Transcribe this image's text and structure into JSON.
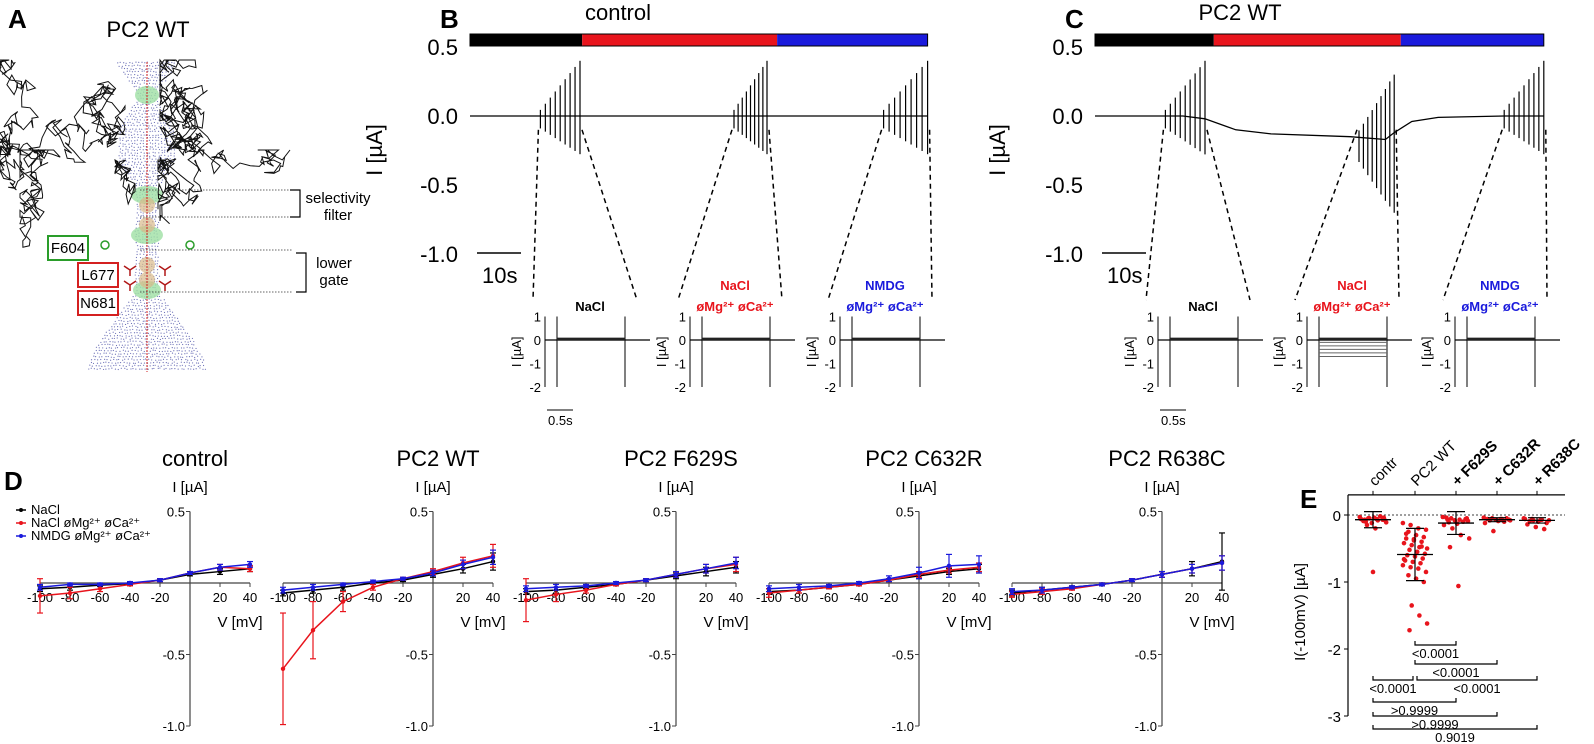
{
  "panel_labels": {
    "a": "A",
    "b": "B",
    "c": "C",
    "d": "D",
    "e": "E"
  },
  "panel_a": {
    "title": "PC2 WT",
    "residues": [
      {
        "label": "F604",
        "color": "#2a9d2a"
      },
      {
        "label": "L677",
        "color": "#d42020"
      },
      {
        "label": "N681",
        "color": "#d42020"
      }
    ],
    "regions": [
      {
        "line1": "selectivity",
        "line2": "filter"
      },
      {
        "line1": "lower",
        "line2": "gate"
      }
    ]
  },
  "colors": {
    "black": "#000000",
    "red": "#e8141c",
    "blue": "#1a1adc"
  },
  "chart_data": [
    {
      "id": "B",
      "type": "line",
      "title": "control",
      "ylabel": "I [µA]",
      "ylim": [
        -1.0,
        0.5
      ],
      "yticks": [
        "0.5",
        "0.0",
        "-0.5",
        "-1.0"
      ],
      "scalebar": "10s",
      "phases": [
        {
          "color": "#000000",
          "t": [
            0,
            25.5
          ]
        },
        {
          "color": "#e8141c",
          "t": [
            25.5,
            69.8
          ]
        },
        {
          "color": "#1a1adc",
          "t": [
            69.8,
            104
          ]
        }
      ],
      "baseline": [
        [
          0,
          0
        ],
        [
          104,
          0
        ]
      ],
      "pulse_windows": [
        {
          "t": [
            16,
            25
          ],
          "min": -0.3,
          "max": 0.4
        },
        {
          "t": [
            60,
            67.5
          ],
          "min": -0.3,
          "max": 0.4
        },
        {
          "t": [
            94,
            104
          ],
          "min": -0.3,
          "max": 0.4
        }
      ],
      "insets": [
        {
          "line1": "",
          "line2": "NaCl",
          "color": "#000000",
          "yticks": [
            "1",
            "0",
            "-1",
            "-2"
          ],
          "ylabel": "I [µA]",
          "scalebar": "0.5s",
          "steps": []
        },
        {
          "line1": "NaCl",
          "line2": "øMg²⁺ øCa²⁺",
          "color": "#e8141c",
          "yticks": [
            "1",
            "0",
            "-1",
            "-2"
          ],
          "ylabel": "I [µA]",
          "steps": []
        },
        {
          "line1": "NMDG",
          "line2": "øMg²⁺ øCa²⁺",
          "color": "#1a1adc",
          "yticks": [
            "1",
            "0",
            "-1",
            "-2"
          ],
          "ylabel": "I [µA]",
          "steps": []
        }
      ]
    },
    {
      "id": "C",
      "type": "line",
      "title": "PC2 WT",
      "ylabel": "I [µA]",
      "ylim": [
        -1.0,
        0.5
      ],
      "yticks": [
        "0.5",
        "0.0",
        "-0.5",
        "-1.0"
      ],
      "scalebar": "10s",
      "phases": [
        {
          "color": "#000000",
          "t": [
            0,
            27
          ]
        },
        {
          "color": "#e8141c",
          "t": [
            27,
            69.5
          ]
        },
        {
          "color": "#1a1adc",
          "t": [
            69.5,
            102
          ]
        }
      ],
      "baseline": [
        [
          0,
          0
        ],
        [
          20,
          0
        ],
        [
          25,
          -0.02
        ],
        [
          32,
          -0.1
        ],
        [
          40,
          -0.13
        ],
        [
          58,
          -0.15
        ],
        [
          66,
          -0.17
        ],
        [
          68,
          -0.12
        ],
        [
          72,
          -0.04
        ],
        [
          78,
          -0.01
        ],
        [
          93,
          0
        ],
        [
          102,
          0
        ]
      ],
      "pulse_windows": [
        {
          "t": [
            16,
            25
          ],
          "min": -0.3,
          "max": 0.4
        },
        {
          "t": [
            60,
            68
          ],
          "min": -0.75,
          "max": 0.3
        },
        {
          "t": [
            93,
            102
          ],
          "min": -0.3,
          "max": 0.4
        }
      ],
      "insets": [
        {
          "line1": "",
          "line2": "NaCl",
          "color": "#000000",
          "yticks": [
            "1",
            "0",
            "-1",
            "-2"
          ],
          "ylabel": "I [µA]",
          "scalebar": "0.5s",
          "steps": []
        },
        {
          "line1": "NaCl",
          "line2": "øMg²⁺ øCa²⁺",
          "color": "#e8141c",
          "yticks": [
            "1",
            "0",
            "-1",
            "-2"
          ],
          "ylabel": "I [µA]",
          "steps": [
            -0.1,
            -0.25,
            -0.4,
            -0.55,
            -0.7
          ]
        },
        {
          "line1": "NMDG",
          "line2": "øMg²⁺ øCa²⁺",
          "color": "#1a1adc",
          "yticks": [
            "1",
            "0",
            "-1",
            "-2"
          ],
          "ylabel": "I [µA]",
          "steps": []
        }
      ]
    },
    {
      "id": "D",
      "type": "line",
      "xlabel": "V [mV]",
      "ylabel": "I [µA]",
      "x": [
        -100,
        -80,
        -60,
        -40,
        -20,
        0,
        20,
        40
      ],
      "xticks": [
        "-100",
        "-80",
        "-60",
        "-40",
        "-20",
        "20",
        "40"
      ],
      "yticks": [
        "0.5",
        "-0.5",
        "-1.0"
      ],
      "ylim": [
        -1.0,
        0.5
      ],
      "legend": [
        {
          "name": "NaCl",
          "color": "#000000"
        },
        {
          "name": "NaCl øMg²⁺ øCa²⁺",
          "color": "#e8141c"
        },
        {
          "name": "NMDG øMg²⁺ øCa²⁺",
          "color": "#1a1adc"
        }
      ],
      "legend_position": "top-left",
      "subplots": [
        {
          "title": "control",
          "series": [
            {
              "name": "NaCl",
              "values": [
                -0.04,
                -0.03,
                -0.015,
                -0.005,
                0.02,
                0.06,
                0.08,
                0.1
              ],
              "err": [
                0.02,
                0.02,
                0.01,
                0.01,
                0.01,
                0.01,
                0.02,
                0.02
              ]
            },
            {
              "name": "NaCl øMg²⁺ øCa²⁺",
              "values": [
                -0.09,
                -0.07,
                -0.04,
                -0.01,
                0.02,
                0.07,
                0.11,
                0.1
              ],
              "err": [
                0.12,
                0.04,
                0.02,
                0.01,
                0.01,
                0.01,
                0.02,
                0.02
              ]
            },
            {
              "name": "NMDG øMg²⁺ øCa²⁺",
              "values": [
                -0.03,
                -0.01,
                -0.01,
                0.0,
                0.02,
                0.07,
                0.11,
                0.13
              ],
              "err": [
                0.02,
                0.01,
                0.01,
                0.01,
                0.01,
                0.01,
                0.02,
                0.02
              ]
            }
          ]
        },
        {
          "title": "PC2 WT",
          "series": [
            {
              "name": "NaCl",
              "values": [
                -0.07,
                -0.05,
                -0.03,
                0.0,
                0.02,
                0.06,
                0.1,
                0.15
              ],
              "err": [
                0.02,
                0.02,
                0.02,
                0.01,
                0.01,
                0.02,
                0.03,
                0.06
              ]
            },
            {
              "name": "NaCl øMg²⁺ øCa²⁺",
              "values": [
                -0.6,
                -0.33,
                -0.13,
                -0.03,
                0.03,
                0.08,
                0.14,
                0.19
              ],
              "err": [
                0.39,
                0.2,
                0.07,
                0.02,
                0.01,
                0.02,
                0.04,
                0.08
              ]
            },
            {
              "name": "NMDG øMg²⁺ øCa²⁺",
              "values": [
                -0.05,
                -0.03,
                -0.01,
                0.01,
                0.03,
                0.07,
                0.13,
                0.18
              ],
              "err": [
                0.02,
                0.02,
                0.01,
                0.01,
                0.01,
                0.02,
                0.03,
                0.05
              ]
            }
          ]
        },
        {
          "title": "PC2 F629S",
          "series": [
            {
              "name": "NaCl",
              "values": [
                -0.06,
                -0.05,
                -0.03,
                -0.01,
                0.02,
                0.05,
                0.08,
                0.11
              ],
              "err": [
                0.02,
                0.02,
                0.01,
                0.01,
                0.01,
                0.02,
                0.03,
                0.04
              ]
            },
            {
              "name": "NaCl øMg²⁺ øCa²⁺",
              "values": [
                -0.12,
                -0.08,
                -0.05,
                -0.01,
                0.02,
                0.06,
                0.1,
                0.13
              ],
              "err": [
                0.15,
                0.05,
                0.02,
                0.01,
                0.01,
                0.02,
                0.03,
                0.05
              ]
            },
            {
              "name": "NMDG øMg²⁺ øCa²⁺",
              "values": [
                -0.04,
                -0.03,
                -0.02,
                0.0,
                0.02,
                0.06,
                0.1,
                0.14
              ],
              "err": [
                0.02,
                0.02,
                0.01,
                0.01,
                0.01,
                0.02,
                0.03,
                0.04
              ]
            }
          ]
        },
        {
          "title": "PC2 C632R",
          "series": [
            {
              "name": "NaCl",
              "values": [
                -0.06,
                -0.05,
                -0.03,
                -0.01,
                0.02,
                0.05,
                0.08,
                0.1
              ],
              "err": [
                0.02,
                0.02,
                0.01,
                0.01,
                0.01,
                0.02,
                0.02,
                0.03
              ]
            },
            {
              "name": "NaCl øMg²⁺ øCa²⁺",
              "values": [
                -0.07,
                -0.05,
                -0.03,
                -0.01,
                0.02,
                0.06,
                0.09,
                0.11
              ],
              "err": [
                0.03,
                0.02,
                0.01,
                0.01,
                0.01,
                0.02,
                0.02,
                0.03
              ]
            },
            {
              "name": "NMDG øMg²⁺ øCa²⁺",
              "values": [
                -0.04,
                -0.03,
                -0.02,
                0.0,
                0.03,
                0.07,
                0.12,
                0.13
              ],
              "err": [
                0.02,
                0.02,
                0.01,
                0.01,
                0.02,
                0.04,
                0.08,
                0.06
              ]
            }
          ]
        },
        {
          "title": "PC2 R638C",
          "series": [
            {
              "name": "NaCl",
              "values": [
                -0.07,
                -0.05,
                -0.03,
                -0.01,
                0.02,
                0.06,
                0.1,
                0.15
              ],
              "err": [
                0.02,
                0.02,
                0.01,
                0.01,
                0.01,
                0.02,
                0.05,
                0.2
              ]
            },
            {
              "name": "NaCl øMg²⁺ øCa²⁺",
              "values": [
                -0.08,
                -0.06,
                -0.04,
                -0.01,
                0.02,
                0.06,
                0.1,
                0.14
              ],
              "err": [
                0.02,
                0.02,
                0.01,
                0.01,
                0.01,
                0.02,
                0.03,
                0.05
              ]
            },
            {
              "name": "NMDG øMg²⁺ øCa²⁺",
              "values": [
                -0.06,
                -0.05,
                -0.03,
                -0.01,
                0.02,
                0.06,
                0.1,
                0.14
              ],
              "err": [
                0.02,
                0.02,
                0.01,
                0.01,
                0.01,
                0.02,
                0.03,
                0.05
              ]
            }
          ]
        }
      ]
    },
    {
      "id": "E",
      "type": "scatter",
      "ylabel": "I(-100mV) [µA]",
      "ylim": [
        -3,
        0.3
      ],
      "yticks": [
        "0",
        "-1",
        "-2",
        "-3"
      ],
      "categories": [
        {
          "label": "contr",
          "bold": false
        },
        {
          "label": "PC2 WT",
          "bold": false
        },
        {
          "label": "+ F629S",
          "bold": true
        },
        {
          "label": "+ C632R",
          "bold": true
        },
        {
          "label": "+ R638C",
          "bold": true
        }
      ],
      "groups": [
        {
          "mean": -0.07,
          "sd": 0.12,
          "points": [
            -0.03,
            -0.05,
            -0.06,
            -0.08,
            -0.1,
            -0.04,
            -0.07,
            -0.09,
            -0.12,
            -0.02,
            -0.06,
            -0.05,
            -0.08,
            -0.11,
            -0.15,
            -0.2,
            -0.04,
            -0.07,
            -0.85
          ]
        },
        {
          "mean": -0.59,
          "sd": 0.39,
          "points": [
            -0.12,
            -0.15,
            -0.2,
            -0.22,
            -0.25,
            -0.3,
            -0.33,
            -0.35,
            -0.38,
            -0.4,
            -0.42,
            -0.45,
            -0.48,
            -0.5,
            -0.52,
            -0.55,
            -0.58,
            -0.6,
            -0.62,
            -0.65,
            -0.68,
            -0.7,
            -0.72,
            -0.75,
            -0.78,
            -0.8,
            -0.85,
            -0.9,
            -0.95,
            -1.0,
            -0.28,
            -0.36,
            -0.47,
            -0.66,
            -1.35,
            -1.5,
            -1.62,
            -1.72
          ]
        },
        {
          "mean": -0.12,
          "sd": 0.17,
          "points": [
            -0.03,
            -0.05,
            -0.07,
            -0.09,
            -0.11,
            -0.13,
            -0.06,
            -0.04,
            -0.08,
            -0.1,
            -0.15,
            -0.2,
            -0.3,
            -0.35,
            -0.48,
            -1.06,
            -0.05,
            -0.07
          ]
        },
        {
          "mean": -0.07,
          "sd": 0.03,
          "points": [
            -0.04,
            -0.05,
            -0.06,
            -0.07,
            -0.08,
            -0.09,
            -0.05,
            -0.06,
            -0.07,
            -0.1,
            -0.12,
            -0.24,
            -0.06,
            -0.08
          ]
        },
        {
          "mean": -0.08,
          "sd": 0.04,
          "points": [
            -0.05,
            -0.06,
            -0.07,
            -0.08,
            -0.09,
            -0.1,
            -0.12,
            -0.14,
            -0.18,
            -0.21,
            -0.06,
            -0.08,
            -0.07
          ]
        }
      ],
      "comparisons": [
        {
          "from": 1,
          "to": 2,
          "p": "<0.0001"
        },
        {
          "from": 1,
          "to": 3,
          "p": "<0.0001"
        },
        {
          "from": 0,
          "to": 1,
          "p": "<0.0001"
        },
        {
          "from": 1,
          "to": 4,
          "p": "<0.0001"
        },
        {
          "from": 0,
          "to": 2,
          "p": ">0.9999"
        },
        {
          "from": 0,
          "to": 3,
          "p": ">0.9999"
        },
        {
          "from": 0,
          "to": 4,
          "p": "0.9019"
        }
      ]
    }
  ]
}
